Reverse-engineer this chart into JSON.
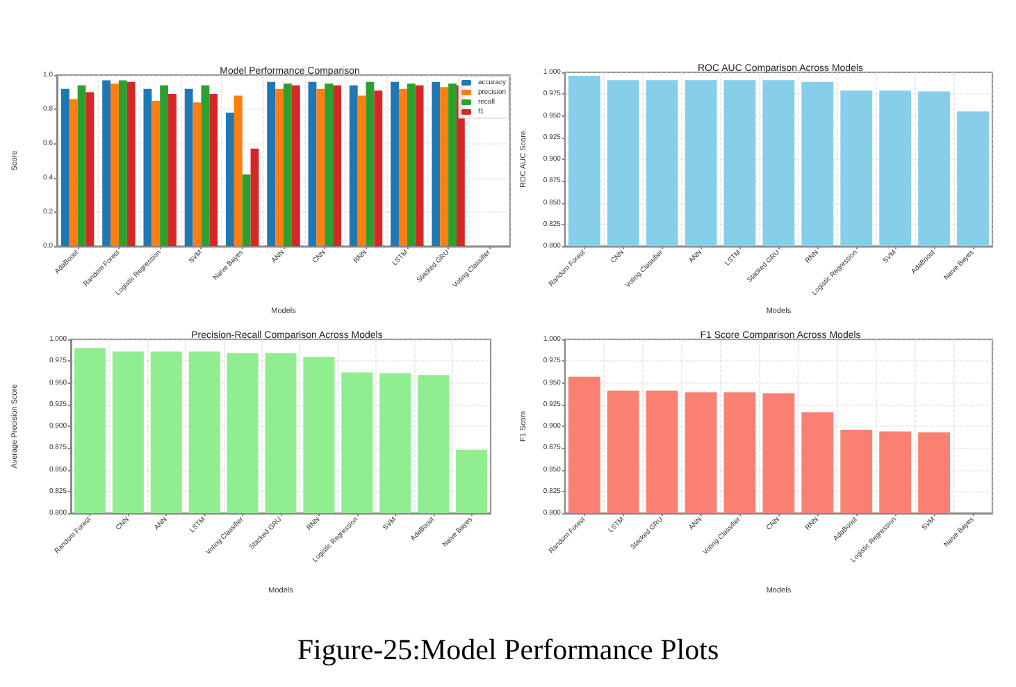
{
  "chart_data": [
    {
      "type": "bar",
      "title": "Model Performance Comparison",
      "xlabel": "Models",
      "ylabel": "Score",
      "categories": [
        "AdaBoost",
        "Random Forest",
        "Logistic Regression",
        "SVM",
        "Naive Bayes",
        "ANN",
        "CNN",
        "RNN",
        "LSTM",
        "Stacked GRU",
        "Voting Classifier"
      ],
      "series": [
        {
          "name": "accuracy",
          "color": "#1f77b4",
          "values": [
            0.92,
            0.97,
            0.92,
            0.92,
            0.78,
            0.96,
            0.96,
            0.94,
            0.96,
            0.96,
            null
          ]
        },
        {
          "name": "precision",
          "color": "#ff7f0e",
          "values": [
            0.86,
            0.95,
            0.85,
            0.84,
            0.88,
            0.92,
            0.92,
            0.88,
            0.92,
            0.93,
            null
          ]
        },
        {
          "name": "recall",
          "color": "#2ca02c",
          "values": [
            0.94,
            0.97,
            0.94,
            0.94,
            0.42,
            0.95,
            0.95,
            0.96,
            0.95,
            0.95,
            null
          ]
        },
        {
          "name": "f1",
          "color": "#d62728",
          "values": [
            0.9,
            0.96,
            0.89,
            0.89,
            0.57,
            0.94,
            0.94,
            0.91,
            0.94,
            0.94,
            null
          ]
        }
      ],
      "ylim": [
        0,
        1
      ],
      "yticks": [
        {
          "value": 0,
          "label": "0.0"
        },
        {
          "value": 0.2,
          "label": "0.2"
        },
        {
          "value": 0.4,
          "label": "0.4"
        },
        {
          "value": 0.6,
          "label": "0.6"
        },
        {
          "value": 0.8,
          "label": "0.8"
        },
        {
          "value": 1,
          "label": "1.0"
        }
      ],
      "grid": true,
      "legend": "top right"
    },
    {
      "type": "bar",
      "title": "ROC AUC Comparison Across Models",
      "xlabel": "Models",
      "ylabel": "ROC AUC Score",
      "categories": [
        "Random Forest",
        "CNN",
        "Voting Classifier",
        "ANN",
        "LSTM",
        "Stacked GRU",
        "RNN",
        "Logistic Regression",
        "SVM",
        "AdaBoost",
        "Naive Bayes"
      ],
      "values": [
        0.996,
        0.991,
        0.991,
        0.991,
        0.991,
        0.991,
        0.989,
        0.979,
        0.979,
        0.978,
        0.955
      ],
      "color": "#87ceeb",
      "ylim": [
        0.8,
        1
      ],
      "yticks": [
        {
          "value": 0.8,
          "label": "0.800"
        },
        {
          "value": 0.825,
          "label": "0.825"
        },
        {
          "value": 0.85,
          "label": "0.850"
        },
        {
          "value": 0.875,
          "label": "0.875"
        },
        {
          "value": 0.9,
          "label": "0.900"
        },
        {
          "value": 0.925,
          "label": "0.925"
        },
        {
          "value": 0.95,
          "label": "0.950"
        },
        {
          "value": 0.975,
          "label": "0.975"
        },
        {
          "value": 1,
          "label": "1.000"
        }
      ],
      "grid": true
    },
    {
      "type": "bar",
      "title": "Precision-Recall Comparison Across Models",
      "xlabel": "Models",
      "ylabel": "Average Precision Score",
      "categories": [
        "Random Forest",
        "CNN",
        "ANN",
        "LSTM",
        "Voting Classifier",
        "Stacked GRU",
        "RNN",
        "Logistic Regression",
        "SVM",
        "AdaBoost",
        "Naive Bayes"
      ],
      "values": [
        0.99,
        0.986,
        0.986,
        0.986,
        0.984,
        0.984,
        0.98,
        0.962,
        0.961,
        0.959,
        0.873
      ],
      "color": "#90ee90",
      "ylim": [
        0.8,
        1
      ],
      "yticks": [
        {
          "value": 0.8,
          "label": "0.800"
        },
        {
          "value": 0.825,
          "label": "0.825"
        },
        {
          "value": 0.85,
          "label": "0.850"
        },
        {
          "value": 0.875,
          "label": "0.875"
        },
        {
          "value": 0.9,
          "label": "0.900"
        },
        {
          "value": 0.925,
          "label": "0.925"
        },
        {
          "value": 0.95,
          "label": "0.950"
        },
        {
          "value": 0.975,
          "label": "0.975"
        },
        {
          "value": 1,
          "label": "1.000"
        }
      ],
      "grid": true
    },
    {
      "type": "bar",
      "title": "F1 Score Comparison Across Models",
      "xlabel": "Models",
      "ylabel": "F1 Score",
      "categories": [
        "Random Forest",
        "LSTM",
        "Stacked GRU",
        "ANN",
        "Voting Classifier",
        "CNN",
        "RNN",
        "AdaBoost",
        "Logistic Regression",
        "SVM",
        "Naive Bayes"
      ],
      "values": [
        0.957,
        0.941,
        0.941,
        0.939,
        0.939,
        0.938,
        0.916,
        0.896,
        0.894,
        0.893,
        null
      ],
      "color": "#fa8072",
      "ylim": [
        0.8,
        1
      ],
      "yticks": [
        {
          "value": 0.8,
          "label": "0.800"
        },
        {
          "value": 0.825,
          "label": "0.825"
        },
        {
          "value": 0.85,
          "label": "0.850"
        },
        {
          "value": 0.875,
          "label": "0.875"
        },
        {
          "value": 0.9,
          "label": "0.900"
        },
        {
          "value": 0.925,
          "label": "0.925"
        },
        {
          "value": 0.95,
          "label": "0.950"
        },
        {
          "value": 0.975,
          "label": "0.975"
        },
        {
          "value": 1,
          "label": "1.000"
        }
      ],
      "grid": true,
      "annotations": [
        "Figure-25:Model Performance Plots"
      ]
    }
  ]
}
